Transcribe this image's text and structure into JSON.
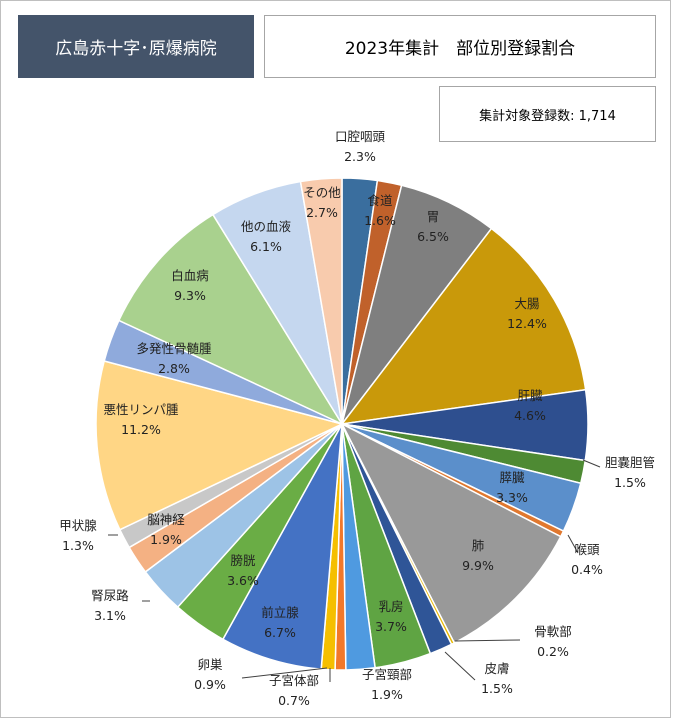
{
  "header": {
    "hospital_name": "広島赤十字･原爆病院",
    "title": "2023年集計　部位別登録割合",
    "count_label": "集計対象登録数: 1,714"
  },
  "chart_data": {
    "type": "pie",
    "title": "2023年集計　部位別登録割合",
    "total": 1714,
    "start": "12 o'clock",
    "direction": "clockwise",
    "slices": [
      {
        "name": "口腔咽頭",
        "value": 2.3,
        "label": "2.3%",
        "color": "#3a6e9e"
      },
      {
        "name": "食道",
        "value": 1.6,
        "label": "1.6%",
        "color": "#c0612b"
      },
      {
        "name": "胃",
        "value": 6.5,
        "label": "6.5%",
        "color": "#7f7f7f"
      },
      {
        "name": "大腸",
        "value": 12.4,
        "label": "12.4%",
        "color": "#c9990a"
      },
      {
        "name": "肝臓",
        "value": 4.6,
        "label": "4.6%",
        "color": "#2e4f8f"
      },
      {
        "name": "胆嚢胆管",
        "value": 1.5,
        "label": "1.5%",
        "color": "#4e8a33"
      },
      {
        "name": "膵臓",
        "value": 3.3,
        "label": "3.3%",
        "color": "#5b8fcb"
      },
      {
        "name": "喉頭",
        "value": 0.4,
        "label": "0.4%",
        "color": "#e0782f"
      },
      {
        "name": "肺",
        "value": 9.9,
        "label": "9.9%",
        "color": "#999999"
      },
      {
        "name": "骨軟部",
        "value": 0.2,
        "label": "0.2%",
        "color": "#e8b800"
      },
      {
        "name": "皮膚",
        "value": 1.5,
        "label": "1.5%",
        "color": "#2f5597"
      },
      {
        "name": "乳房",
        "value": 3.7,
        "label": "3.7%",
        "color": "#5fa443"
      },
      {
        "name": "子宮頸部",
        "value": 1.9,
        "label": "1.9%",
        "color": "#4f9ae0"
      },
      {
        "name": "子宮体部",
        "value": 0.7,
        "label": "0.7%",
        "color": "#f2782a"
      },
      {
        "name": "卵巣",
        "value": 0.9,
        "label": "0.9%",
        "color": "#f5bf00"
      },
      {
        "name": "前立腺",
        "value": 6.7,
        "label": "6.7%",
        "color": "#4472c4"
      },
      {
        "name": "膀胱",
        "value": 3.6,
        "label": "3.6%",
        "color": "#6aad45"
      },
      {
        "name": "腎尿路",
        "value": 3.1,
        "label": "3.1%",
        "color": "#9dc3e6"
      },
      {
        "name": "脳神経",
        "value": 1.9,
        "label": "1.9%",
        "color": "#f4b183"
      },
      {
        "name": "甲状腺",
        "value": 1.3,
        "label": "1.3%",
        "color": "#c8c8c8"
      },
      {
        "name": "悪性リンパ腫",
        "value": 11.2,
        "label": "11.2%",
        "color": "#ffd685"
      },
      {
        "name": "多発性骨髄腫",
        "value": 2.8,
        "label": "2.8%",
        "color": "#8faadc"
      },
      {
        "name": "白血病",
        "value": 9.3,
        "label": "9.3%",
        "color": "#a9d18e"
      },
      {
        "name": "他の血液",
        "value": 6.1,
        "label": "6.1%",
        "color": "#c5d7ef"
      },
      {
        "name": "その他",
        "value": 2.7,
        "label": "2.7%",
        "color": "#f8cbad"
      }
    ]
  }
}
